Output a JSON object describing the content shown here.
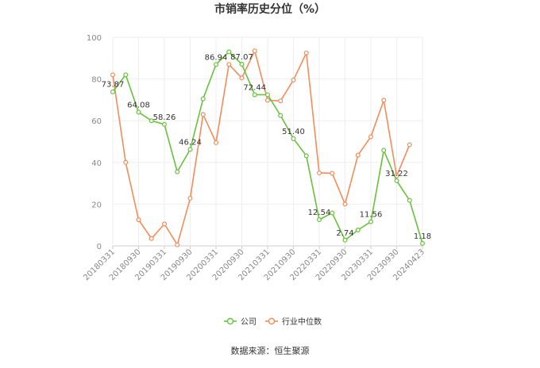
{
  "chart_data": {
    "type": "line",
    "title": "市销率历史分位（%）",
    "source": "数据来源：恒生聚源",
    "xlabel": "",
    "ylabel": "",
    "ylim": [
      0,
      100
    ],
    "yticks": [
      0,
      20,
      40,
      60,
      80,
      100
    ],
    "grid": true,
    "legend_position": "bottom-center",
    "x_tick_labels": [
      "20180331",
      "20180930",
      "20190331",
      "20190930",
      "20200331",
      "20200930",
      "20210331",
      "20210930",
      "20220331",
      "20220930",
      "20230331",
      "20230930",
      "20240423"
    ],
    "x_tick_indices": [
      0,
      2,
      4,
      6,
      8,
      10,
      12,
      14,
      16,
      18,
      20,
      22,
      24
    ],
    "series": [
      {
        "name": "公司",
        "color": "#67c23a",
        "values": [
          73.87,
          82.0,
          64.08,
          60.0,
          58.26,
          35.5,
          46.24,
          70.5,
          86.94,
          93.0,
          87.07,
          72.44,
          72.44,
          62.5,
          51.4,
          43.2,
          12.54,
          15.8,
          2.74,
          7.6,
          11.56,
          45.8,
          31.22,
          21.8,
          1.18
        ],
        "labeled": [
          {
            "i": 0,
            "text": "73.87"
          },
          {
            "i": 2,
            "text": "64.08"
          },
          {
            "i": 4,
            "text": "58.26"
          },
          {
            "i": 6,
            "text": "46.24"
          },
          {
            "i": 8,
            "text": "86.94"
          },
          {
            "i": 10,
            "text": "87.07"
          },
          {
            "i": 11,
            "text": "72.44"
          },
          {
            "i": 14,
            "text": "51.40"
          },
          {
            "i": 16,
            "text": "12.54"
          },
          {
            "i": 18,
            "text": "2.74"
          },
          {
            "i": 20,
            "text": "11.56"
          },
          {
            "i": 22,
            "text": "31.22"
          },
          {
            "i": 24,
            "text": "1.18"
          }
        ]
      },
      {
        "name": "行业中位数",
        "color": "#f28c5a",
        "values": [
          82.0,
          40.0,
          12.5,
          3.5,
          10.5,
          0.5,
          22.8,
          63.0,
          49.5,
          87.0,
          80.5,
          93.5,
          69.8,
          69.5,
          79.5,
          92.5,
          35.0,
          34.8,
          20.0,
          43.5,
          52.3,
          69.8,
          33.5,
          48.5,
          null
        ]
      }
    ]
  }
}
